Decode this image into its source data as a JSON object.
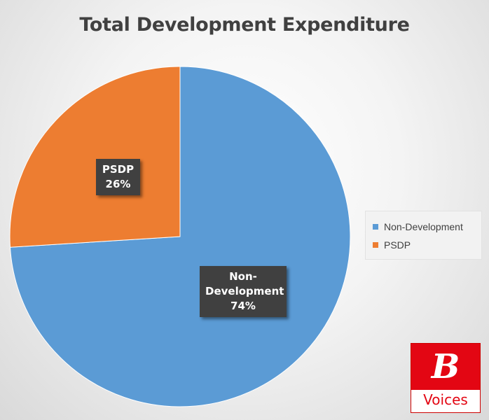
{
  "chart_data": {
    "type": "pie",
    "title": "Total Development Expenditure",
    "slices": [
      {
        "name": "Non-Development",
        "label_lines": [
          "Non-",
          "Development",
          "74%"
        ],
        "value": 74,
        "color": "#5b9bd5"
      },
      {
        "name": "PSDP",
        "label_lines": [
          "PSDP",
          "26%"
        ],
        "value": 26,
        "color": "#ed7d31"
      }
    ],
    "legend": {
      "placement": "right",
      "entries": [
        "Non-Development",
        "PSDP"
      ]
    }
  },
  "logo": {
    "letter": "B",
    "word": "Voices",
    "colors": {
      "brand": "#e30613"
    }
  }
}
